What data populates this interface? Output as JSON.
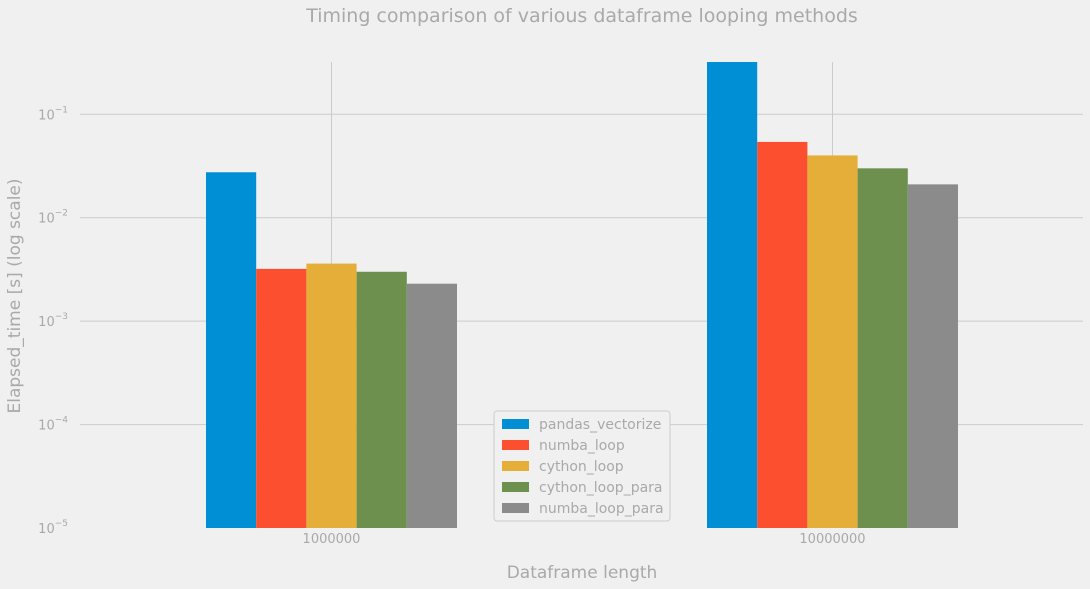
{
  "chart_data": {
    "type": "bar",
    "title": "Timing comparison of various dataframe looping methods",
    "xlabel": "Dataframe length",
    "ylabel": "Elapsed_time [s] (log scale)",
    "yscale": "log",
    "ylim": [
      1e-05,
      0.32
    ],
    "categories": [
      "1000000",
      "10000000"
    ],
    "yticks": [
      {
        "value": 1e-05,
        "base": "10",
        "exp": "−5"
      },
      {
        "value": 0.0001,
        "base": "10",
        "exp": "−4"
      },
      {
        "value": 0.001,
        "base": "10",
        "exp": "−3"
      },
      {
        "value": 0.01,
        "base": "10",
        "exp": "−2"
      },
      {
        "value": 0.1,
        "base": "10",
        "exp": "−1"
      }
    ],
    "grid": true,
    "legend_position": "lower-center",
    "series": [
      {
        "name": "pandas_vectorize",
        "color": "#008fd5",
        "values": [
          0.0275,
          0.32
        ]
      },
      {
        "name": "numba_loop",
        "color": "#fc4f30",
        "values": [
          0.0032,
          0.054
        ]
      },
      {
        "name": "cython_loop",
        "color": "#e5ae38",
        "values": [
          0.0036,
          0.04
        ]
      },
      {
        "name": "cython_loop_para",
        "color": "#6d904f",
        "values": [
          0.003,
          0.03
        ]
      },
      {
        "name": "numba_loop_para",
        "color": "#8b8b8b",
        "values": [
          0.0023,
          0.021
        ]
      }
    ]
  }
}
